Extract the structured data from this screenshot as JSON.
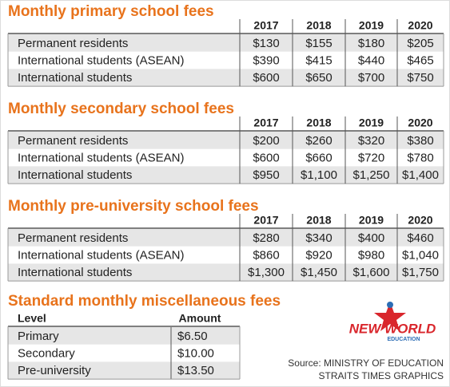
{
  "sections": [
    {
      "title": "Monthly primary school fees",
      "columns": [
        "2017",
        "2018",
        "2019",
        "2020"
      ],
      "rows": [
        {
          "label": "Permanent residents",
          "values": [
            "$130",
            "$155",
            "$180",
            "$205"
          ]
        },
        {
          "label": "International students (ASEAN)",
          "values": [
            "$390",
            "$415",
            "$440",
            "$465"
          ]
        },
        {
          "label": "International students",
          "values": [
            "$600",
            "$650",
            "$700",
            "$750"
          ]
        }
      ]
    },
    {
      "title": "Monthly secondary school fees",
      "columns": [
        "2017",
        "2018",
        "2019",
        "2020"
      ],
      "rows": [
        {
          "label": "Permanent residents",
          "values": [
            "$200",
            "$260",
            "$320",
            "$380"
          ]
        },
        {
          "label": "International students (ASEAN)",
          "values": [
            "$600",
            "$660",
            "$720",
            "$780"
          ]
        },
        {
          "label": "International students",
          "values": [
            "$950",
            "$1,100",
            "$1,250",
            "$1,400"
          ]
        }
      ]
    },
    {
      "title": "Monthly pre-university school fees",
      "columns": [
        "2017",
        "2018",
        "2019",
        "2020"
      ],
      "rows": [
        {
          "label": "Permanent residents",
          "values": [
            "$280",
            "$340",
            "$400",
            "$460"
          ]
        },
        {
          "label": "International students (ASEAN)",
          "values": [
            "$860",
            "$920",
            "$980",
            "$1,040"
          ]
        },
        {
          "label": "International students",
          "values": [
            "$1,300",
            "$1,450",
            "$1,600",
            "$1,750"
          ]
        }
      ]
    }
  ],
  "misc": {
    "title": "Standard monthly miscellaneous fees",
    "columns": [
      "Level",
      "Amount"
    ],
    "rows": [
      [
        "Primary",
        "$6.50"
      ],
      [
        "Secondary",
        "$10.00"
      ],
      [
        "Pre-university",
        "$13.50"
      ]
    ]
  },
  "logo": {
    "line1": "NEW WORLD",
    "line2": "EDUCATION"
  },
  "source": [
    "Source: MINISTRY OF EDUCATION",
    "STRAITS TIMES GRAPHICS"
  ]
}
